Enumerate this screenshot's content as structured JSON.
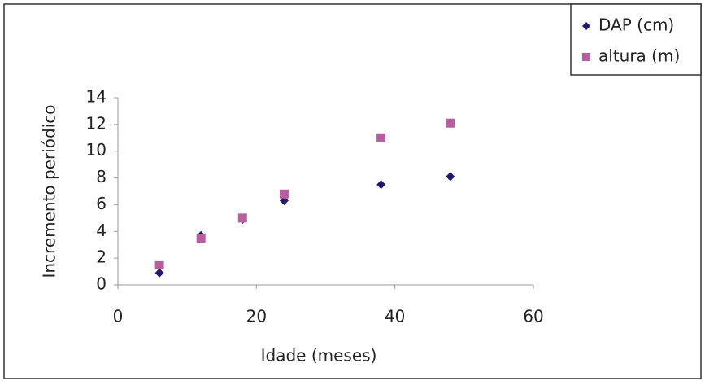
{
  "chart_data": {
    "type": "scatter",
    "x_label": "Idade (meses)",
    "y_label": "Incremento periódico",
    "x": [
      6,
      12,
      18,
      24,
      38,
      48
    ],
    "series": [
      {
        "name": "DAP (cm)",
        "color": "#1f1a6e",
        "marker": "diamond",
        "values": [
          0.9,
          3.7,
          4.9,
          6.3,
          7.5,
          8.1
        ]
      },
      {
        "name": "altura (m)",
        "color": "#b65f9f",
        "marker": "square",
        "values": [
          1.5,
          3.5,
          5.0,
          6.8,
          11.0,
          12.1
        ]
      }
    ],
    "xlim": [
      0,
      60
    ],
    "xticks": [
      0,
      20,
      40,
      60
    ],
    "ylim": [
      0,
      14
    ],
    "yticks": [
      0,
      2,
      4,
      6,
      8,
      10,
      12,
      14
    ],
    "grid": false,
    "legend": "top-right"
  }
}
